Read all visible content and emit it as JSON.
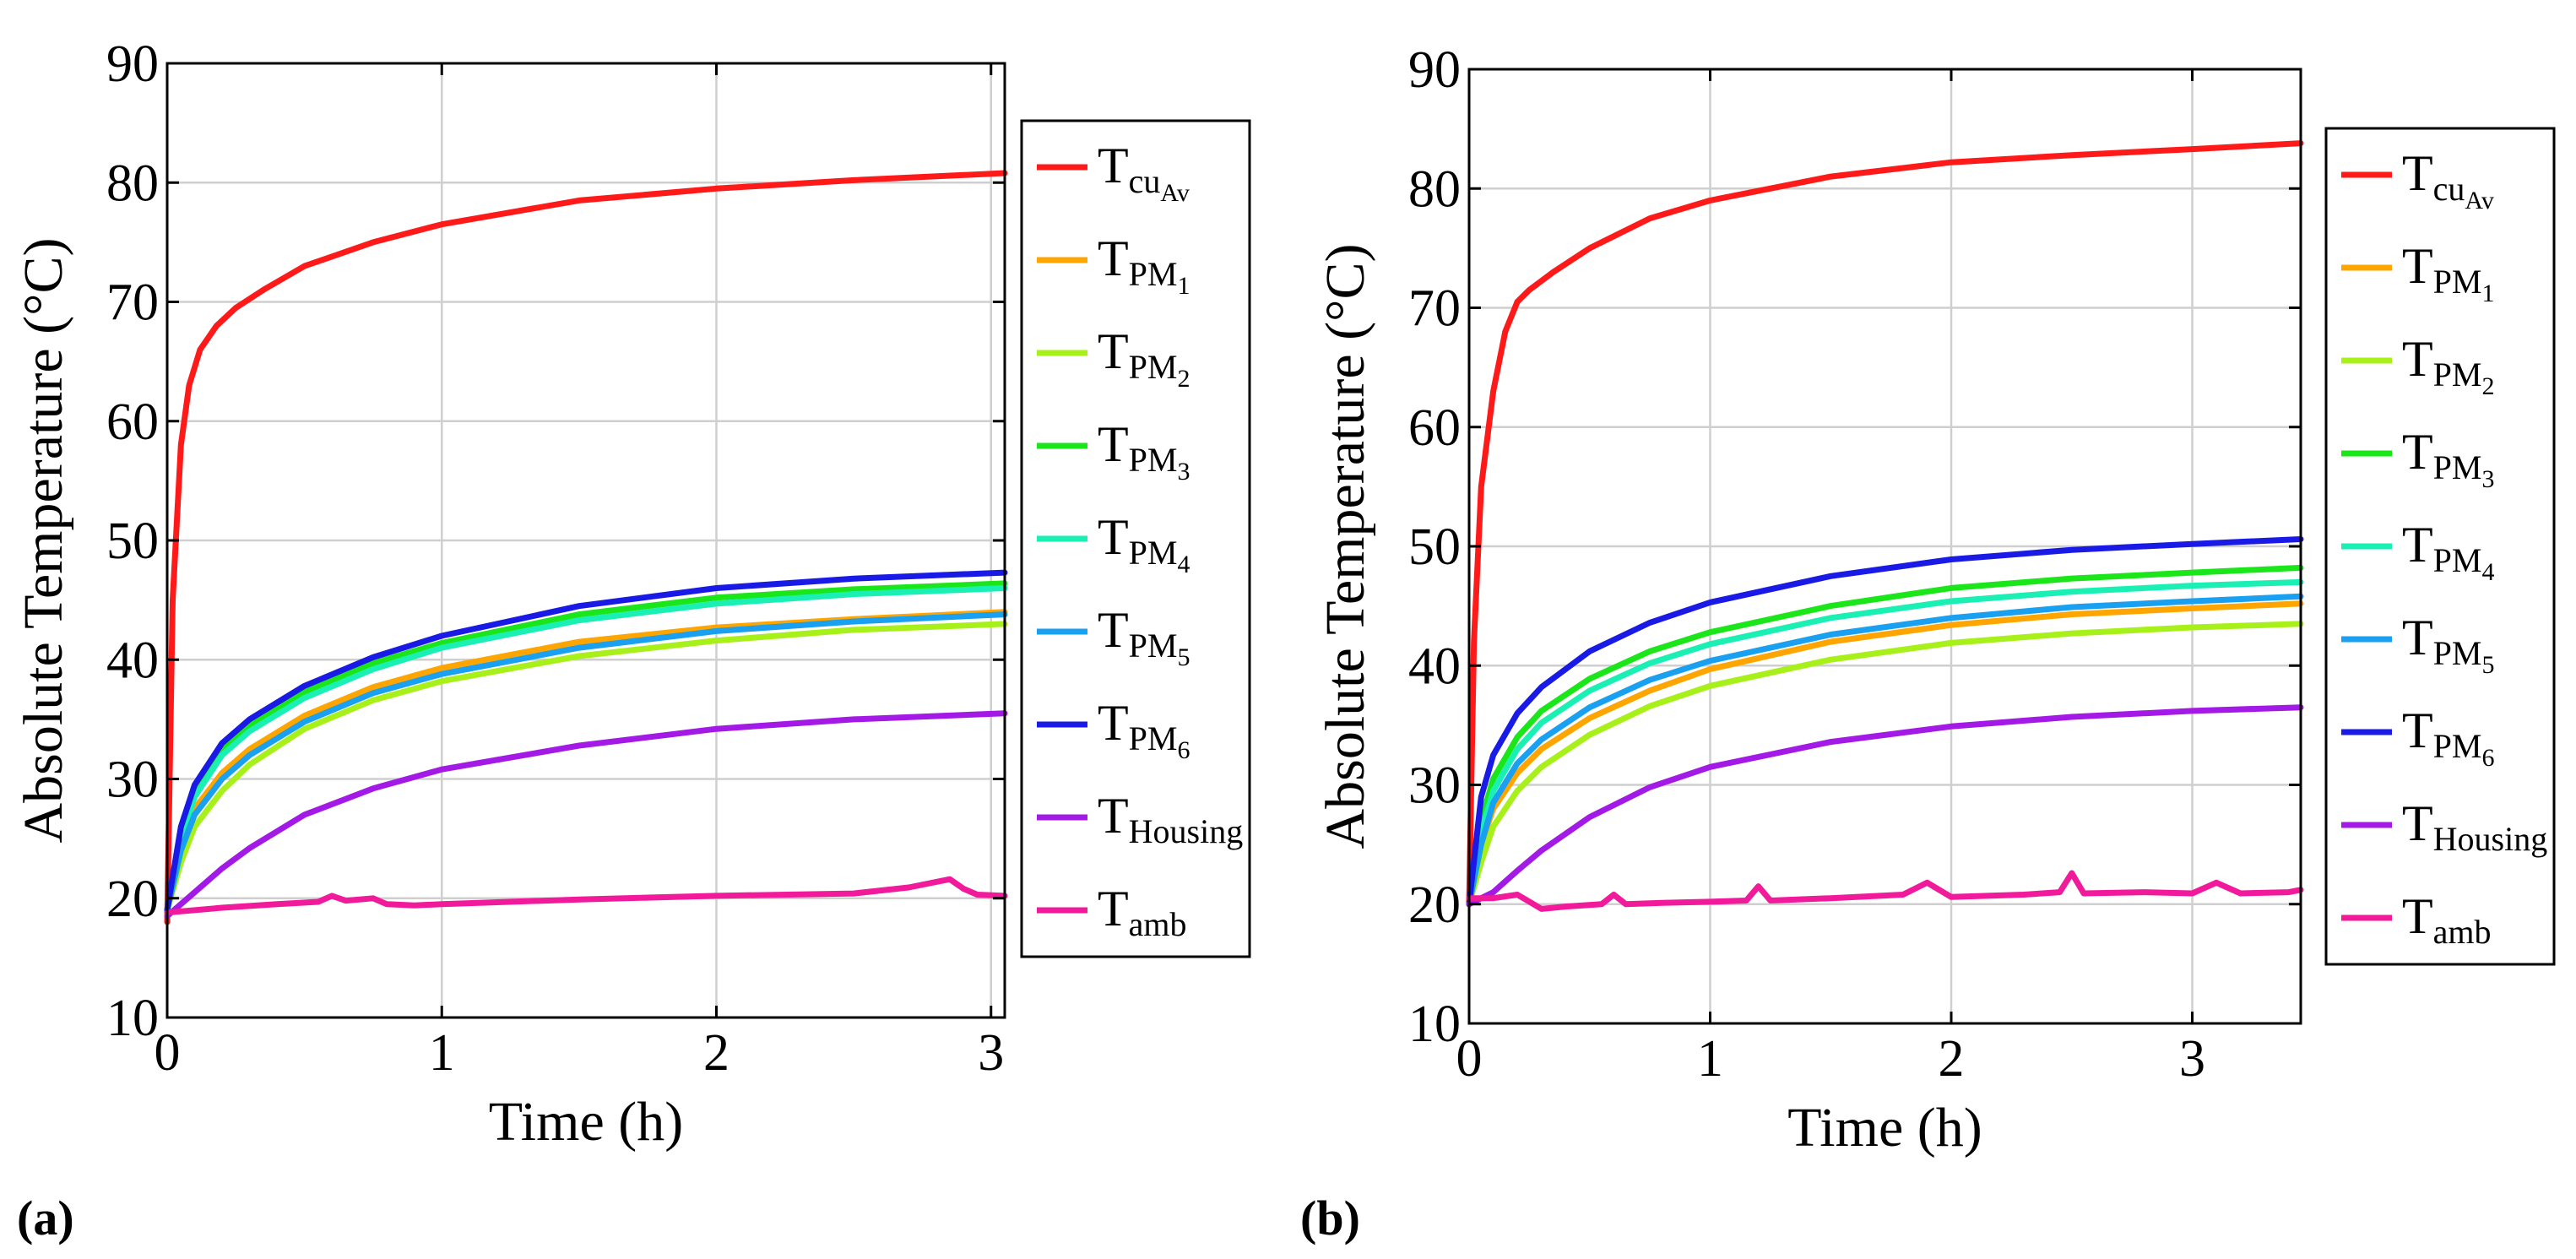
{
  "panel_labels": [
    "(a)",
    "(b)"
  ],
  "chart_data": [
    {
      "type": "line",
      "panel": "(a)",
      "xlabel": "Time (h)",
      "ylabel": "Absolute Temperature (°C)",
      "xlim": [
        0,
        3.05
      ],
      "ylim": [
        10,
        90
      ],
      "xticks": [
        0,
        1,
        2,
        3
      ],
      "yticks": [
        10,
        20,
        30,
        40,
        50,
        60,
        70,
        80,
        90
      ],
      "grid": true,
      "legend_position": "right",
      "series": [
        {
          "name": "T_cuAv",
          "label_main": "T",
          "label_sub": "cu",
          "label_subsub": "Av",
          "color": "#ff1a1a",
          "x": [
            0,
            0.02,
            0.05,
            0.08,
            0.12,
            0.18,
            0.25,
            0.35,
            0.5,
            0.75,
            1.0,
            1.5,
            2.0,
            2.5,
            3.05
          ],
          "y": [
            18,
            45,
            58,
            63,
            66,
            68,
            69.5,
            71,
            73,
            75,
            76.5,
            78.5,
            79.5,
            80.2,
            80.8
          ]
        },
        {
          "name": "T_PM1",
          "label_main": "T",
          "label_sub": "PM",
          "label_subsub": "1",
          "color": "#ffa500",
          "x": [
            0,
            0.05,
            0.1,
            0.2,
            0.3,
            0.5,
            0.75,
            1.0,
            1.5,
            2.0,
            2.5,
            3.05
          ],
          "y": [
            19,
            24,
            27.5,
            30.5,
            32.5,
            35.3,
            37.7,
            39.3,
            41.5,
            42.7,
            43.4,
            44.0
          ]
        },
        {
          "name": "T_PM2",
          "label_main": "T",
          "label_sub": "PM",
          "label_subsub": "2",
          "color": "#a8f01a",
          "x": [
            0,
            0.05,
            0.1,
            0.2,
            0.3,
            0.5,
            0.75,
            1.0,
            1.5,
            2.0,
            2.5,
            3.05
          ],
          "y": [
            19,
            23,
            26,
            29,
            31.2,
            34.2,
            36.6,
            38.2,
            40.3,
            41.6,
            42.5,
            43.0
          ]
        },
        {
          "name": "T_PM3",
          "label_main": "T",
          "label_sub": "PM",
          "label_subsub": "3",
          "color": "#1ae61a",
          "x": [
            0,
            0.05,
            0.1,
            0.2,
            0.3,
            0.5,
            0.75,
            1.0,
            1.5,
            2.0,
            2.5,
            3.05
          ],
          "y": [
            19,
            25.5,
            29,
            32.5,
            34.5,
            37.3,
            39.7,
            41.4,
            43.8,
            45.2,
            45.9,
            46.4
          ]
        },
        {
          "name": "T_PM4",
          "label_main": "T",
          "label_sub": "PM",
          "label_subsub": "4",
          "color": "#1af0b4",
          "x": [
            0,
            0.05,
            0.1,
            0.2,
            0.3,
            0.5,
            0.75,
            1.0,
            1.5,
            2.0,
            2.5,
            3.05
          ],
          "y": [
            19,
            25,
            28.5,
            32,
            34,
            36.8,
            39.2,
            41.0,
            43.3,
            44.7,
            45.5,
            46.0
          ]
        },
        {
          "name": "T_PM5",
          "label_main": "T",
          "label_sub": "PM",
          "label_subsub": "5",
          "color": "#1aa0f0",
          "x": [
            0,
            0.05,
            0.1,
            0.2,
            0.3,
            0.5,
            0.75,
            1.0,
            1.5,
            2.0,
            2.5,
            3.05
          ],
          "y": [
            19,
            24,
            27,
            30,
            32,
            34.8,
            37.2,
            38.8,
            41.0,
            42.4,
            43.2,
            43.8
          ]
        },
        {
          "name": "T_PM6",
          "label_main": "T",
          "label_sub": "PM",
          "label_subsub": "6",
          "color": "#1a1ae6",
          "x": [
            0,
            0.05,
            0.1,
            0.2,
            0.3,
            0.5,
            0.75,
            1.0,
            1.5,
            2.0,
            2.5,
            3.05
          ],
          "y": [
            19,
            26,
            29.5,
            33,
            35,
            37.8,
            40.2,
            42.0,
            44.5,
            46.0,
            46.8,
            47.3
          ]
        },
        {
          "name": "T_Housing",
          "label_main": "T",
          "label_sub": "Housing",
          "label_subsub": "",
          "color": "#a31ae6",
          "x": [
            0,
            0.1,
            0.2,
            0.3,
            0.5,
            0.75,
            1.0,
            1.5,
            2.0,
            2.5,
            3.05
          ],
          "y": [
            18.5,
            20.5,
            22.5,
            24.2,
            27,
            29.2,
            30.8,
            32.8,
            34.2,
            35.0,
            35.5
          ]
        },
        {
          "name": "T_amb",
          "label_main": "T",
          "label_sub": "amb",
          "label_subsub": "",
          "color": "#f01a9b",
          "x": [
            0,
            0.2,
            0.4,
            0.55,
            0.6,
            0.65,
            0.75,
            0.8,
            0.9,
            1.0,
            1.5,
            2.0,
            2.5,
            2.7,
            2.85,
            2.9,
            2.95,
            3.05
          ],
          "y": [
            18.8,
            19.2,
            19.5,
            19.7,
            20.2,
            19.8,
            20.0,
            19.5,
            19.4,
            19.5,
            19.9,
            20.2,
            20.4,
            20.9,
            21.6,
            20.8,
            20.3,
            20.2
          ]
        }
      ]
    },
    {
      "type": "line",
      "panel": "(b)",
      "xlabel": "Time (h)",
      "ylabel": "Absolute Temperature (°C)",
      "xlim": [
        0,
        3.45
      ],
      "ylim": [
        10,
        90
      ],
      "xticks": [
        0,
        1,
        2,
        3
      ],
      "yticks": [
        10,
        20,
        30,
        40,
        50,
        60,
        70,
        80,
        90
      ],
      "grid": true,
      "legend_position": "right",
      "series": [
        {
          "name": "T_cuAv",
          "label_main": "T",
          "label_sub": "cu",
          "label_subsub": "Av",
          "color": "#ff1a1a",
          "x": [
            0,
            0.02,
            0.05,
            0.1,
            0.15,
            0.2,
            0.25,
            0.35,
            0.5,
            0.75,
            1.0,
            1.5,
            2.0,
            2.5,
            3.0,
            3.45
          ],
          "y": [
            20,
            42,
            55,
            63,
            68,
            70.5,
            71.5,
            73,
            75,
            77.5,
            79,
            81,
            82.2,
            82.8,
            83.3,
            83.8
          ]
        },
        {
          "name": "T_PM1",
          "label_main": "T",
          "label_sub": "PM",
          "label_subsub": "1",
          "color": "#ffa500",
          "x": [
            0,
            0.05,
            0.1,
            0.2,
            0.3,
            0.5,
            0.75,
            1.0,
            1.5,
            2.0,
            2.5,
            3.0,
            3.45
          ],
          "y": [
            20,
            25,
            28,
            31,
            33,
            35.6,
            37.9,
            39.7,
            42.0,
            43.4,
            44.3,
            44.8,
            45.2
          ]
        },
        {
          "name": "T_PM2",
          "label_main": "T",
          "label_sub": "PM",
          "label_subsub": "2",
          "color": "#a8f01a",
          "x": [
            0,
            0.05,
            0.1,
            0.2,
            0.3,
            0.5,
            0.75,
            1.0,
            1.5,
            2.0,
            2.5,
            3.0,
            3.45
          ],
          "y": [
            20,
            23.5,
            26.5,
            29.5,
            31.5,
            34.2,
            36.6,
            38.3,
            40.5,
            41.9,
            42.7,
            43.2,
            43.5
          ]
        },
        {
          "name": "T_PM3",
          "label_main": "T",
          "label_sub": "PM",
          "label_subsub": "3",
          "color": "#1ae61a",
          "x": [
            0,
            0.05,
            0.1,
            0.2,
            0.3,
            0.5,
            0.75,
            1.0,
            1.5,
            2.0,
            2.5,
            3.0,
            3.45
          ],
          "y": [
            20,
            27,
            30.5,
            34,
            36.2,
            38.9,
            41.2,
            42.8,
            45.0,
            46.5,
            47.3,
            47.8,
            48.2
          ]
        },
        {
          "name": "T_PM4",
          "label_main": "T",
          "label_sub": "PM",
          "label_subsub": "4",
          "color": "#1af0b4",
          "x": [
            0,
            0.05,
            0.1,
            0.2,
            0.3,
            0.5,
            0.75,
            1.0,
            1.5,
            2.0,
            2.5,
            3.0,
            3.45
          ],
          "y": [
            20,
            26,
            29.5,
            33,
            35.2,
            37.9,
            40.2,
            41.8,
            44.0,
            45.4,
            46.2,
            46.7,
            47.0
          ]
        },
        {
          "name": "T_PM5",
          "label_main": "T",
          "label_sub": "PM",
          "label_subsub": "5",
          "color": "#1aa0f0",
          "x": [
            0,
            0.05,
            0.1,
            0.2,
            0.3,
            0.5,
            0.75,
            1.0,
            1.5,
            2.0,
            2.5,
            3.0,
            3.45
          ],
          "y": [
            20,
            25,
            28.5,
            31.8,
            33.8,
            36.5,
            38.8,
            40.4,
            42.6,
            44.0,
            44.9,
            45.4,
            45.8
          ]
        },
        {
          "name": "T_PM6",
          "label_main": "T",
          "label_sub": "PM",
          "label_subsub": "6",
          "color": "#1a1ae6",
          "x": [
            0,
            0.05,
            0.1,
            0.2,
            0.3,
            0.5,
            0.75,
            1.0,
            1.5,
            2.0,
            2.5,
            3.0,
            3.45
          ],
          "y": [
            20,
            29,
            32.5,
            36,
            38.2,
            41.2,
            43.6,
            45.3,
            47.5,
            48.9,
            49.7,
            50.2,
            50.6
          ]
        },
        {
          "name": "T_Housing",
          "label_main": "T",
          "label_sub": "Housing",
          "label_subsub": "",
          "color": "#a31ae6",
          "x": [
            0,
            0.1,
            0.2,
            0.3,
            0.5,
            0.75,
            1.0,
            1.5,
            2.0,
            2.5,
            3.0,
            3.45
          ],
          "y": [
            20,
            21,
            22.8,
            24.5,
            27.3,
            29.8,
            31.5,
            33.6,
            34.9,
            35.7,
            36.2,
            36.5
          ]
        },
        {
          "name": "T_amb",
          "label_main": "T",
          "label_sub": "amb",
          "label_subsub": "",
          "color": "#f01a9b",
          "x": [
            0,
            0.1,
            0.2,
            0.25,
            0.3,
            0.4,
            0.55,
            0.6,
            0.65,
            0.8,
            1.0,
            1.15,
            1.2,
            1.25,
            1.5,
            1.8,
            1.9,
            2.0,
            2.3,
            2.45,
            2.5,
            2.55,
            2.8,
            3.0,
            3.1,
            3.2,
            3.4,
            3.45
          ],
          "y": [
            20.5,
            20.5,
            20.8,
            20.2,
            19.6,
            19.8,
            20.0,
            20.8,
            20.0,
            20.1,
            20.2,
            20.3,
            21.5,
            20.3,
            20.5,
            20.8,
            21.8,
            20.6,
            20.8,
            21.0,
            22.6,
            20.9,
            21.0,
            20.9,
            21.8,
            20.9,
            21.0,
            21.2
          ]
        }
      ]
    }
  ]
}
